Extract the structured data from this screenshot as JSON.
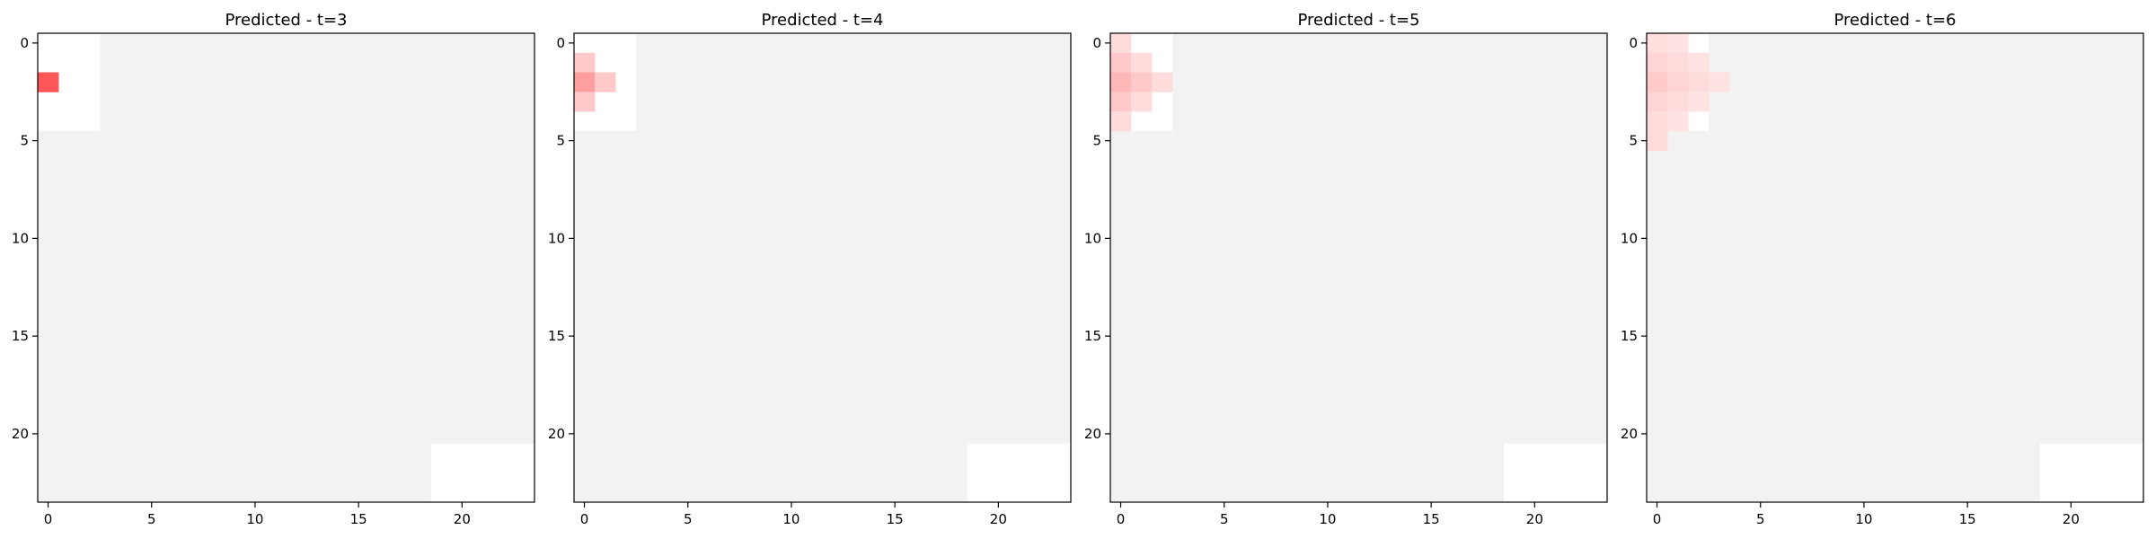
{
  "chart_data": [
    {
      "type": "heatmap",
      "title": "Predicted - t=3",
      "xlabel": "",
      "ylabel": "",
      "xticks": [
        "0",
        "5",
        "10",
        "15",
        "20"
      ],
      "yticks": [
        "0",
        "5",
        "10",
        "15",
        "20"
      ],
      "grid_size": [
        24,
        24
      ],
      "grid": false,
      "background_color": "#f2f2f2",
      "white_regions": [
        {
          "rows": [
            0,
            4
          ],
          "cols": [
            0,
            2
          ]
        },
        {
          "rows": [
            21,
            23
          ],
          "cols": [
            19,
            23
          ]
        }
      ],
      "cells": [
        {
          "row": 2,
          "col": 0,
          "color": "#ff5757"
        }
      ]
    },
    {
      "type": "heatmap",
      "title": "Predicted - t=4",
      "xlabel": "",
      "ylabel": "",
      "xticks": [
        "0",
        "5",
        "10",
        "15",
        "20"
      ],
      "yticks": [
        "0",
        "5",
        "10",
        "15",
        "20"
      ],
      "grid_size": [
        24,
        24
      ],
      "grid": false,
      "background_color": "#f2f2f2",
      "white_regions": [
        {
          "rows": [
            0,
            4
          ],
          "cols": [
            0,
            2
          ]
        },
        {
          "rows": [
            21,
            23
          ],
          "cols": [
            19,
            23
          ]
        }
      ],
      "cells": [
        {
          "row": 1,
          "col": 0,
          "color": "#ffc9c9"
        },
        {
          "row": 2,
          "col": 0,
          "color": "#ff9e9e"
        },
        {
          "row": 2,
          "col": 1,
          "color": "#ffc9c9"
        },
        {
          "row": 3,
          "col": 0,
          "color": "#ffc9c9"
        }
      ]
    },
    {
      "type": "heatmap",
      "title": "Predicted - t=5",
      "xlabel": "",
      "ylabel": "",
      "xticks": [
        "0",
        "5",
        "10",
        "15",
        "20"
      ],
      "yticks": [
        "0",
        "5",
        "10",
        "15",
        "20"
      ],
      "grid_size": [
        24,
        24
      ],
      "grid": false,
      "background_color": "#f2f2f2",
      "white_regions": [
        {
          "rows": [
            0,
            4
          ],
          "cols": [
            0,
            2
          ]
        },
        {
          "rows": [
            21,
            23
          ],
          "cols": [
            19,
            23
          ]
        }
      ],
      "cells": [
        {
          "row": 0,
          "col": 0,
          "color": "#ffdcdc"
        },
        {
          "row": 1,
          "col": 0,
          "color": "#ffc9c9"
        },
        {
          "row": 1,
          "col": 1,
          "color": "#ffdcdc"
        },
        {
          "row": 2,
          "col": 0,
          "color": "#ffb8b8"
        },
        {
          "row": 2,
          "col": 1,
          "color": "#ffc9c9"
        },
        {
          "row": 2,
          "col": 2,
          "color": "#ffdcdc"
        },
        {
          "row": 3,
          "col": 0,
          "color": "#ffc9c9"
        },
        {
          "row": 3,
          "col": 1,
          "color": "#ffdcdc"
        },
        {
          "row": 4,
          "col": 0,
          "color": "#ffdcdc"
        }
      ]
    },
    {
      "type": "heatmap",
      "title": "Predicted - t=6",
      "xlabel": "",
      "ylabel": "",
      "xticks": [
        "0",
        "5",
        "10",
        "15",
        "20"
      ],
      "yticks": [
        "0",
        "5",
        "10",
        "15",
        "20"
      ],
      "grid_size": [
        24,
        24
      ],
      "grid": false,
      "background_color": "#f2f2f2",
      "white_regions": [
        {
          "rows": [
            0,
            4
          ],
          "cols": [
            0,
            2
          ]
        },
        {
          "rows": [
            21,
            23
          ],
          "cols": [
            19,
            23
          ]
        }
      ],
      "cells": [
        {
          "row": 0,
          "col": 0,
          "color": "#ffdede"
        },
        {
          "row": 0,
          "col": 1,
          "color": "#ffe3e3"
        },
        {
          "row": 1,
          "col": 0,
          "color": "#ffd4d4"
        },
        {
          "row": 1,
          "col": 1,
          "color": "#ffdcdc"
        },
        {
          "row": 1,
          "col": 2,
          "color": "#ffe3e3"
        },
        {
          "row": 2,
          "col": 0,
          "color": "#ffcaca"
        },
        {
          "row": 2,
          "col": 1,
          "color": "#ffd4d4"
        },
        {
          "row": 2,
          "col": 2,
          "color": "#ffdcdc"
        },
        {
          "row": 2,
          "col": 3,
          "color": "#ffe3e3"
        },
        {
          "row": 3,
          "col": 0,
          "color": "#ffd4d4"
        },
        {
          "row": 3,
          "col": 1,
          "color": "#ffdcdc"
        },
        {
          "row": 3,
          "col": 2,
          "color": "#ffe3e3"
        },
        {
          "row": 4,
          "col": 0,
          "color": "#ffdcdc"
        },
        {
          "row": 4,
          "col": 1,
          "color": "#ffe3e3"
        },
        {
          "row": 5,
          "col": 0,
          "color": "#ffdcdc"
        }
      ]
    }
  ]
}
